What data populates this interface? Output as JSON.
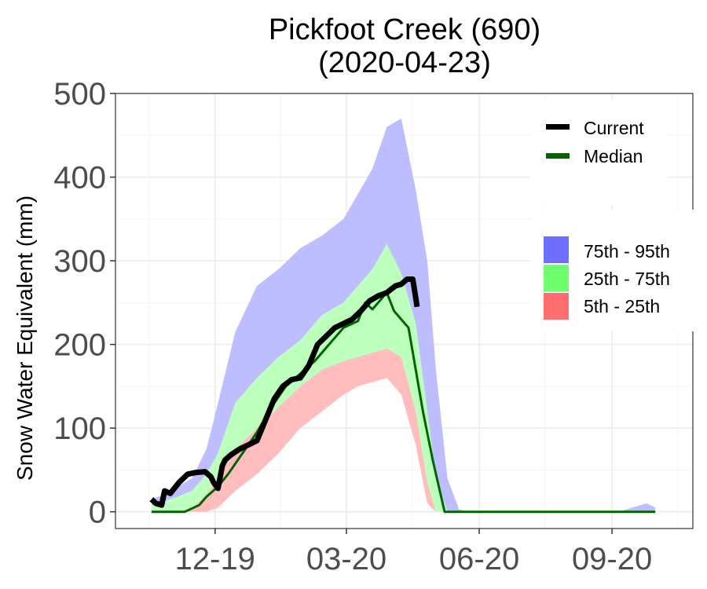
{
  "chart_data": {
    "type": "area",
    "title": "Pickfoot Creek (690)",
    "subtitle": "(2020-04-23)",
    "ylabel": "Snow Water Equivalent (mm)",
    "xlabel": "",
    "ylim": [
      -20,
      500
    ],
    "yticks": [
      0,
      100,
      200,
      300,
      400,
      500
    ],
    "xticks": [
      {
        "label": "12-19",
        "day": 61
      },
      {
        "label": "03-20",
        "day": 152
      },
      {
        "label": "06-20",
        "day": 244
      },
      {
        "label": "09-20",
        "day": 336
      }
    ],
    "xlim": [
      -8,
      392
    ],
    "grid": true,
    "legend_lines": [
      {
        "name": "Current",
        "color": "#000000"
      },
      {
        "name": "Median",
        "color": "#006400"
      }
    ],
    "legend_bands": [
      {
        "name": "75th - 95th",
        "color": "#6e6eff"
      },
      {
        "name": "25th - 75th",
        "color": "#6eff6e"
      },
      {
        "name": "5th - 25th",
        "color": "#ff6e6e"
      }
    ],
    "x": [
      17,
      25,
      35,
      45,
      55,
      63,
      75,
      90,
      105,
      120,
      135,
      150,
      160,
      170,
      180,
      190,
      200,
      208,
      214,
      222,
      230,
      238,
      246,
      250,
      300,
      340,
      360,
      366
    ],
    "p95": [
      15,
      20,
      30,
      40,
      75,
      130,
      215,
      270,
      290,
      315,
      330,
      350,
      380,
      410,
      460,
      470,
      385,
      300,
      170,
      40,
      3,
      0,
      0,
      0,
      0,
      0,
      10,
      5
    ],
    "p75": [
      8,
      12,
      18,
      25,
      45,
      70,
      130,
      160,
      185,
      205,
      235,
      250,
      270,
      290,
      320,
      285,
      225,
      120,
      40,
      0,
      0,
      0,
      0,
      0,
      0,
      0,
      0,
      0
    ],
    "p25": [
      0,
      0,
      0,
      5,
      20,
      40,
      75,
      100,
      125,
      150,
      170,
      180,
      185,
      190,
      195,
      185,
      120,
      35,
      0,
      0,
      0,
      0,
      0,
      0,
      0,
      0,
      0,
      0
    ],
    "p5": [
      0,
      0,
      0,
      0,
      0,
      5,
      25,
      45,
      70,
      100,
      120,
      140,
      150,
      155,
      160,
      140,
      80,
      10,
      0,
      0,
      0,
      0,
      0,
      0,
      0,
      0,
      0,
      0
    ],
    "median": {
      "x": [
        17,
        30,
        40,
        50,
        55,
        63,
        70,
        80,
        90,
        100,
        110,
        120,
        130,
        140,
        150,
        160,
        165,
        170,
        180,
        185,
        195,
        205,
        212,
        220,
        366
      ],
      "y": [
        0,
        0,
        0,
        8,
        18,
        30,
        45,
        70,
        95,
        125,
        150,
        165,
        180,
        200,
        220,
        228,
        250,
        242,
        262,
        240,
        220,
        120,
        60,
        0,
        0
      ]
    },
    "current": {
      "x": [
        17,
        20,
        24,
        26,
        30,
        36,
        42,
        48,
        54,
        58,
        60,
        63,
        66,
        68,
        72,
        78,
        84,
        90,
        96,
        102,
        108,
        114,
        120,
        126,
        132,
        138,
        144,
        150,
        156,
        162,
        168,
        174,
        180,
        186,
        190,
        194,
        198,
        201
      ],
      "y": [
        15,
        10,
        8,
        25,
        22,
        35,
        45,
        47,
        48,
        42,
        35,
        28,
        55,
        62,
        68,
        75,
        80,
        85,
        110,
        135,
        150,
        158,
        160,
        175,
        200,
        210,
        220,
        225,
        230,
        240,
        252,
        258,
        262,
        270,
        272,
        278,
        278,
        245
      ]
    }
  }
}
